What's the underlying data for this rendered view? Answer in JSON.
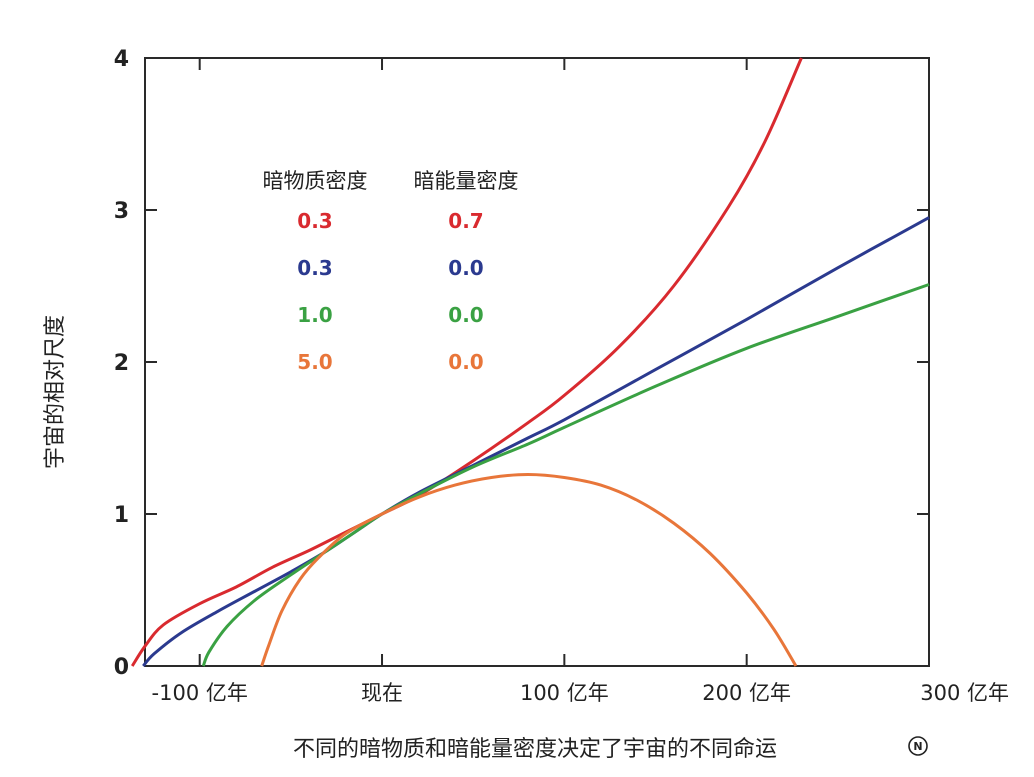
{
  "chart_data": {
    "type": "line",
    "xlabel": "不同的暗物质和暗能量密度决定了宇宙的不同命运",
    "ylabel": "宇宙的相对尺度",
    "x_unit": "亿年",
    "xlim": [
      -130,
      300
    ],
    "ylim": [
      0,
      4
    ],
    "x_ticks": [
      {
        "value": -100,
        "label": "-100 亿年"
      },
      {
        "value": 0,
        "label": "现在"
      },
      {
        "value": 100,
        "label": "100 亿年"
      },
      {
        "value": 200,
        "label": "200 亿年"
      },
      {
        "value": 300,
        "label": "300 亿年"
      }
    ],
    "y_ticks": [
      {
        "value": 0,
        "label": "0"
      },
      {
        "value": 1,
        "label": "1"
      },
      {
        "value": 2,
        "label": "2"
      },
      {
        "value": 3,
        "label": "3"
      },
      {
        "value": 4,
        "label": "4"
      }
    ],
    "legend": {
      "headers": [
        "暗物质密度",
        "暗能量密度"
      ],
      "placement": "top-left"
    },
    "series": [
      {
        "color": "#d92a2f",
        "matter_density": "0.3",
        "dark_energy_density": "0.7",
        "points": [
          [
            -137,
            0
          ],
          [
            -130,
            0.13
          ],
          [
            -120,
            0.27
          ],
          [
            -100,
            0.41
          ],
          [
            -80,
            0.52
          ],
          [
            -60,
            0.65
          ],
          [
            -40,
            0.76
          ],
          [
            -20,
            0.88
          ],
          [
            0,
            1.0
          ],
          [
            20,
            1.12
          ],
          [
            50,
            1.35
          ],
          [
            80,
            1.6
          ],
          [
            100,
            1.78
          ],
          [
            130,
            2.1
          ],
          [
            160,
            2.5
          ],
          [
            190,
            3.02
          ],
          [
            210,
            3.45
          ],
          [
            230,
            4.0
          ]
        ]
      },
      {
        "color": "#2b3a8f",
        "matter_density": "0.3",
        "dark_energy_density": "0.0",
        "points": [
          [
            -131,
            0
          ],
          [
            -125,
            0.08
          ],
          [
            -110,
            0.22
          ],
          [
            -90,
            0.36
          ],
          [
            -70,
            0.49
          ],
          [
            -50,
            0.62
          ],
          [
            -30,
            0.76
          ],
          [
            -15,
            0.88
          ],
          [
            0,
            1.0
          ],
          [
            20,
            1.14
          ],
          [
            50,
            1.32
          ],
          [
            80,
            1.5
          ],
          [
            100,
            1.62
          ],
          [
            150,
            1.95
          ],
          [
            200,
            2.28
          ],
          [
            250,
            2.62
          ],
          [
            300,
            2.95
          ]
        ]
      },
      {
        "color": "#3aa143",
        "matter_density": "1.0",
        "dark_energy_density": "0.0",
        "points": [
          [
            -98,
            0
          ],
          [
            -95,
            0.09
          ],
          [
            -85,
            0.26
          ],
          [
            -70,
            0.43
          ],
          [
            -50,
            0.6
          ],
          [
            -30,
            0.76
          ],
          [
            -15,
            0.88
          ],
          [
            0,
            1.0
          ],
          [
            20,
            1.13
          ],
          [
            50,
            1.31
          ],
          [
            80,
            1.46
          ],
          [
            100,
            1.57
          ],
          [
            150,
            1.84
          ],
          [
            200,
            2.09
          ],
          [
            250,
            2.3
          ],
          [
            300,
            2.51
          ]
        ]
      },
      {
        "color": "#e8763a",
        "matter_density": "5.0",
        "dark_energy_density": "0.0",
        "points": [
          [
            -66,
            0
          ],
          [
            -62,
            0.14
          ],
          [
            -55,
            0.36
          ],
          [
            -45,
            0.57
          ],
          [
            -35,
            0.71
          ],
          [
            -20,
            0.87
          ],
          [
            0,
            1.0
          ],
          [
            20,
            1.11
          ],
          [
            40,
            1.19
          ],
          [
            60,
            1.24
          ],
          [
            80,
            1.26
          ],
          [
            100,
            1.24
          ],
          [
            120,
            1.19
          ],
          [
            140,
            1.09
          ],
          [
            160,
            0.94
          ],
          [
            180,
            0.74
          ],
          [
            200,
            0.48
          ],
          [
            215,
            0.24
          ],
          [
            227,
            0
          ]
        ]
      }
    ]
  },
  "source_mark": "N"
}
